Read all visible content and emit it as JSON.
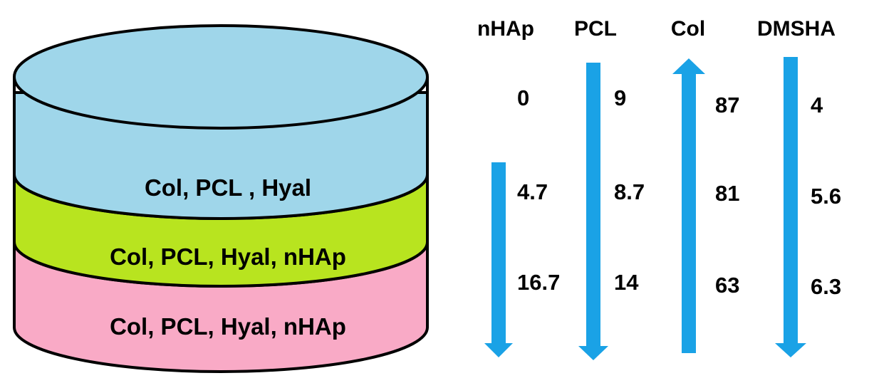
{
  "colors": {
    "top_layer": "#9fd6ea",
    "middle_layer": "#b8e41f",
    "bottom_layer": "#f9aac6",
    "arrow": "#1aa2e6",
    "outline": "#000000"
  },
  "layers": [
    {
      "label": "Col, PCL , Hyal"
    },
    {
      "label": "Col, PCL, Hyal, nHAp"
    },
    {
      "label": "Col, PCL, Hyal, nHAp"
    }
  ],
  "columns": [
    {
      "header": "nHAp",
      "arrow": "down",
      "values": [
        "0",
        "4.7",
        "16.7"
      ]
    },
    {
      "header": "PCL",
      "arrow": "down",
      "values": [
        "9",
        "8.7",
        "14"
      ]
    },
    {
      "header": "Col",
      "arrow": "up",
      "values": [
        "87",
        "81",
        "63"
      ]
    },
    {
      "header": "DMSHA",
      "arrow": "down",
      "values": [
        "4",
        "5.6",
        "6.3"
      ]
    }
  ]
}
